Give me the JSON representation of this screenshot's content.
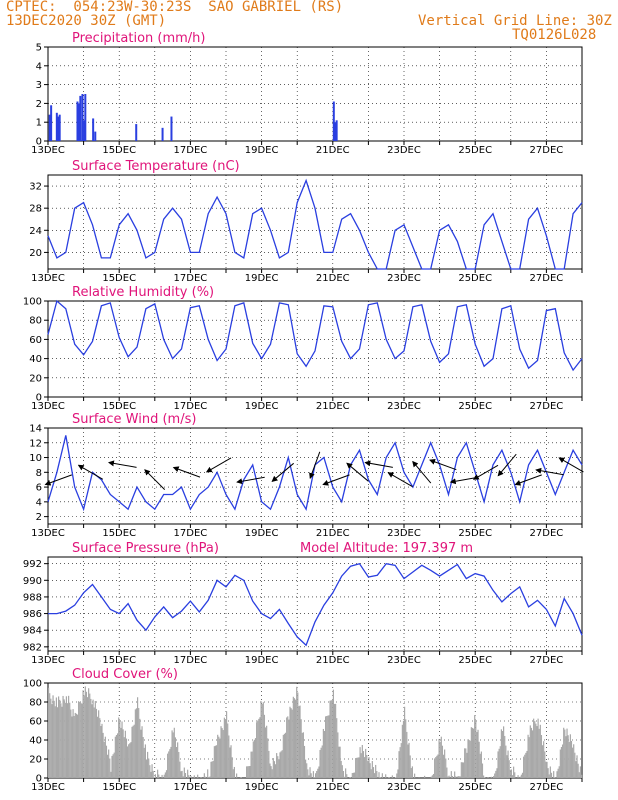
{
  "header": {
    "line1_left": "CPTEC:  054:23W-30:23S  SAO GABRIEL (RS)",
    "line2_left": "13DEC2020 30Z (GMT)",
    "line1_right": "Vertical Grid Line: 30Z",
    "line2_right": "TQ0126L028"
  },
  "colors": {
    "header": "#e07b1a",
    "title": "#e0147a",
    "line": "#2a3fe0",
    "cloud": "#a8a8a8",
    "wind": "#000000"
  },
  "x_tick_labels": [
    "13DEC",
    "15DEC",
    "17DEC",
    "19DEC",
    "21DEC",
    "23DEC",
    "25DEC",
    "27DEC"
  ],
  "panels": [
    {
      "title": "Precipitation (mm/h)",
      "chart_data": {
        "type": "bar",
        "ylim": [
          0,
          5
        ],
        "yticks": [
          "0",
          "1",
          "2",
          "3",
          "4",
          "5"
        ],
        "xlim_days": [
          0,
          15
        ],
        "x_days": [
          0.02,
          0.06,
          0.22,
          0.26,
          0.3,
          0.8,
          0.84,
          0.88,
          0.94,
          0.99,
          1.02,
          1.24,
          1.3,
          2.45,
          3.19,
          3.44,
          8.0,
          8.04,
          8.08
        ],
        "values": [
          1.4,
          1.9,
          1.5,
          1.3,
          1.4,
          2.1,
          2.0,
          2.4,
          2.5,
          1.1,
          2.5,
          1.2,
          0.5,
          0.9,
          0.7,
          1.3,
          2.1,
          1.0,
          1.1
        ]
      }
    },
    {
      "title": "Surface Temperature (nC)",
      "chart_data": {
        "type": "line",
        "ylim": [
          17,
          34
        ],
        "yticks": [
          "20",
          "24",
          "28",
          "32"
        ],
        "xlim_days": [
          0,
          15
        ],
        "x_days": [
          0,
          0.25,
          0.5,
          0.75,
          1,
          1.25,
          1.5,
          1.75,
          2,
          2.25,
          2.5,
          2.75,
          3,
          3.25,
          3.5,
          3.75,
          4,
          4.25,
          4.5,
          4.75,
          5,
          5.25,
          5.5,
          5.75,
          6,
          6.25,
          6.5,
          6.75,
          7,
          7.25,
          7.5,
          7.75,
          8,
          8.25,
          8.5,
          8.75,
          9,
          9.25,
          9.5,
          9.75,
          10,
          10.25,
          10.5,
          10.75,
          11,
          11.25,
          11.5,
          11.75,
          12,
          12.25,
          12.5,
          12.75,
          13,
          13.25,
          13.5,
          13.75,
          14,
          14.25,
          14.5,
          14.75,
          15
        ],
        "values": [
          23,
          19,
          20,
          28,
          29,
          25,
          19,
          19,
          25,
          27,
          24,
          19,
          20,
          26,
          28,
          26,
          20,
          20,
          27,
          30,
          27,
          20,
          19,
          27,
          28,
          24,
          19,
          20,
          29,
          33,
          28,
          20,
          20,
          26,
          27,
          24,
          20,
          17,
          17,
          24,
          25,
          21,
          17,
          17,
          24,
          25,
          22,
          17,
          17,
          25,
          27,
          22,
          17,
          17,
          26,
          28,
          23,
          17,
          17,
          27,
          29
        ]
      }
    },
    {
      "title": "Relative Humidity (%)",
      "chart_data": {
        "type": "line",
        "ylim": [
          0,
          100
        ],
        "yticks": [
          "0",
          "20",
          "40",
          "60",
          "80",
          "100"
        ],
        "xlim_days": [
          0,
          15
        ],
        "x_days": [
          0,
          0.25,
          0.5,
          0.75,
          1,
          1.25,
          1.5,
          1.75,
          2,
          2.25,
          2.5,
          2.75,
          3,
          3.25,
          3.5,
          3.75,
          4,
          4.25,
          4.5,
          4.75,
          5,
          5.25,
          5.5,
          5.75,
          6,
          6.25,
          6.5,
          6.75,
          7,
          7.25,
          7.5,
          7.75,
          8,
          8.25,
          8.5,
          8.75,
          9,
          9.25,
          9.5,
          9.75,
          10,
          10.25,
          10.5,
          10.75,
          11,
          11.25,
          11.5,
          11.75,
          12,
          12.25,
          12.5,
          12.75,
          13,
          13.25,
          13.5,
          13.75,
          14,
          14.25,
          14.5,
          14.75,
          15
        ],
        "values": [
          65,
          100,
          92,
          55,
          44,
          58,
          95,
          98,
          62,
          42,
          52,
          92,
          97,
          60,
          40,
          50,
          93,
          95,
          60,
          38,
          50,
          95,
          98,
          56,
          40,
          55,
          98,
          96,
          45,
          32,
          48,
          95,
          94,
          58,
          40,
          50,
          96,
          98,
          60,
          40,
          48,
          94,
          96,
          58,
          36,
          45,
          94,
          96,
          55,
          32,
          40,
          92,
          95,
          50,
          30,
          38,
          90,
          92,
          46,
          28,
          40
        ]
      }
    },
    {
      "title": "Surface Wind (m/s)",
      "chart_data": {
        "type": "line",
        "ylim": [
          1,
          14
        ],
        "yticks": [
          "2",
          "4",
          "6",
          "8",
          "10",
          "12",
          "14"
        ],
        "xlim_days": [
          0,
          15
        ],
        "x_days": [
          0,
          0.25,
          0.5,
          0.75,
          1,
          1.25,
          1.5,
          1.75,
          2,
          2.25,
          2.5,
          2.75,
          3,
          3.25,
          3.5,
          3.75,
          4,
          4.25,
          4.5,
          4.75,
          5,
          5.25,
          5.5,
          5.75,
          6,
          6.25,
          6.5,
          6.75,
          7,
          7.25,
          7.5,
          7.75,
          8,
          8.25,
          8.5,
          8.75,
          9,
          9.25,
          9.5,
          9.75,
          10,
          10.25,
          10.5,
          10.75,
          11,
          11.25,
          11.5,
          11.75,
          12,
          12.25,
          12.5,
          12.75,
          13,
          13.25,
          13.5,
          13.75,
          14,
          14.25,
          14.5,
          14.75,
          15
        ],
        "values": [
          4,
          8,
          13,
          6,
          3,
          8,
          7,
          5,
          4,
          3,
          6,
          4,
          3,
          5,
          5,
          6,
          3,
          5,
          6,
          8,
          5,
          3,
          7,
          9,
          4,
          3,
          6,
          10,
          5,
          3,
          9,
          10,
          6,
          4,
          9,
          11,
          7,
          5,
          10,
          12,
          8,
          6,
          9,
          12,
          9,
          5,
          10,
          12,
          8,
          4,
          9,
          11,
          8,
          4,
          9,
          11,
          8,
          5,
          8,
          11,
          9
        ],
        "arrows_x_days": [
          0.3,
          1.2,
          2.1,
          3.0,
          3.9,
          4.8,
          5.7,
          6.6,
          7.5,
          8.1,
          8.7,
          9.3,
          9.9,
          10.5,
          11.1,
          11.7,
          12.3,
          12.9,
          13.5,
          14.1,
          14.7
        ],
        "arrows_dir_deg": [
          200,
          150,
          170,
          135,
          160,
          210,
          190,
          220,
          250,
          200,
          140,
          170,
          150,
          130,
          160,
          190,
          210,
          230,
          200,
          170,
          150
        ]
      }
    },
    {
      "title": "Surface Pressure (hPa)",
      "subtitle": "Model Altitude: 197.397 m",
      "chart_data": {
        "type": "line",
        "ylim": [
          981.5,
          992.8
        ],
        "yticks": [
          "982",
          "984",
          "986",
          "988",
          "990",
          "992"
        ],
        "xlim_days": [
          0,
          15
        ],
        "x_days": [
          0,
          0.25,
          0.5,
          0.75,
          1,
          1.25,
          1.5,
          1.75,
          2,
          2.25,
          2.5,
          2.75,
          3,
          3.25,
          3.5,
          3.75,
          4,
          4.25,
          4.5,
          4.75,
          5,
          5.25,
          5.5,
          5.75,
          6,
          6.25,
          6.5,
          6.75,
          7,
          7.25,
          7.5,
          7.75,
          8,
          8.25,
          8.5,
          8.75,
          9,
          9.25,
          9.5,
          9.75,
          10,
          10.25,
          10.5,
          10.75,
          11,
          11.25,
          11.5,
          11.75,
          12,
          12.25,
          12.5,
          12.75,
          13,
          13.25,
          13.5,
          13.75,
          14,
          14.25,
          14.5,
          14.75,
          15
        ],
        "values": [
          986,
          986,
          986.3,
          987,
          988.5,
          989.5,
          988,
          986.5,
          986,
          987.2,
          985.2,
          984,
          985.6,
          986.8,
          985.5,
          986.3,
          987.5,
          986.2,
          987.6,
          990,
          989.2,
          990.6,
          990,
          987.5,
          986,
          985.4,
          986.5,
          984.8,
          983.2,
          982.2,
          985,
          987,
          988.5,
          990.5,
          991.7,
          992,
          990.4,
          990.6,
          992,
          991.8,
          990.2,
          991,
          991.8,
          991.2,
          990.5,
          991.2,
          991.9,
          990.2,
          990.8,
          990.5,
          988.8,
          987.4,
          988.4,
          989.2,
          986.8,
          987.6,
          986.5,
          984.5,
          987.8,
          986,
          983.4
        ]
      }
    },
    {
      "title": "Cloud Cover (%)",
      "chart_data": {
        "type": "bar",
        "ylim": [
          0,
          100
        ],
        "yticks": [
          "0",
          "20",
          "40",
          "60",
          "80",
          "100"
        ],
        "xlim_days": [
          0,
          15
        ],
        "x_days": [
          0,
          0.25,
          0.5,
          0.75,
          1,
          1.25,
          1.5,
          1.75,
          2,
          2.25,
          2.5,
          2.75,
          3,
          3.25,
          3.5,
          3.75,
          4,
          4.25,
          4.5,
          4.75,
          5,
          5.25,
          5.5,
          5.75,
          6,
          6.25,
          6.5,
          6.75,
          7,
          7.25,
          7.5,
          7.75,
          8,
          8.25,
          8.5,
          8.75,
          9,
          9.25,
          9.5,
          9.75,
          10,
          10.25,
          10.5,
          10.75,
          11,
          11.25,
          11.5,
          11.75,
          12,
          12.25,
          12.5,
          12.75,
          13,
          13.25,
          13.5,
          13.75,
          14,
          14.25,
          14.5,
          14.75,
          15
        ],
        "values": [
          95,
          85,
          92,
          70,
          99,
          90,
          60,
          20,
          70,
          40,
          85,
          30,
          10,
          5,
          60,
          15,
          5,
          3,
          10,
          50,
          70,
          5,
          3,
          40,
          90,
          20,
          30,
          75,
          99,
          20,
          5,
          60,
          99,
          15,
          2,
          40,
          25,
          10,
          3,
          5,
          75,
          5,
          2,
          3,
          50,
          10,
          5,
          40,
          70,
          5,
          2,
          60,
          15,
          3,
          55,
          70,
          20,
          3,
          60,
          40,
          5
        ]
      }
    }
  ]
}
